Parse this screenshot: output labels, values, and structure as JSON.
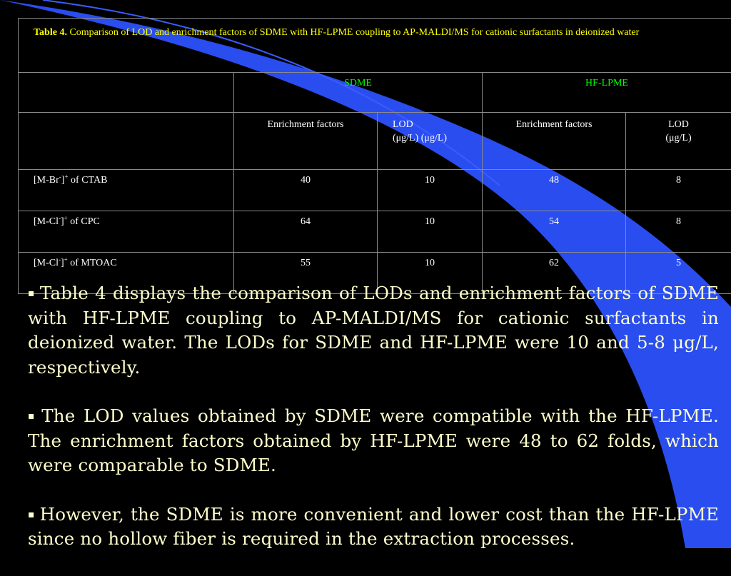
{
  "table": {
    "caption_label": "Table 4.",
    "caption_text": "Comparison of LOD and enrichment factors of SDME with HF-LPME coupling to AP-MALDI/MS for cationic surfactants in deionized water",
    "group_headers": [
      "SDME",
      "HF-LPME"
    ],
    "column_headers": {
      "sdme_enrichment": "Enrichment factors",
      "sdme_lod_line1": "LOD",
      "sdme_lod_line2": "(μg/L) (μg/L)",
      "hf_enrichment": "Enrichment factors",
      "hf_lod_line1": "LOD",
      "hf_lod_line2": "(μg/L)"
    },
    "rows": [
      {
        "pre": "[M-Br",
        "sup1": "-",
        "mid": "]",
        "sup2": "+",
        "post": " of CTAB",
        "sdme_ef": "40",
        "sdme_lod": "10",
        "hf_ef": "48",
        "hf_lod": "8"
      },
      {
        "pre": "[M-Cl",
        "sup1": "-",
        "mid": "]",
        "sup2": "+",
        "post": " of CPC",
        "sdme_ef": "64",
        "sdme_lod": "10",
        "hf_ef": "54",
        "hf_lod": "8"
      },
      {
        "pre": "[M-Cl",
        "sup1": "-",
        "mid": "]",
        "sup2": "+",
        "post": " of MTOAC",
        "sdme_ef": "55",
        "sdme_lod": "10",
        "hf_ef": "62",
        "hf_lod": "5"
      }
    ]
  },
  "bullets": [
    "Table 4 displays the comparison of LODs and enrichment factors of SDME with HF-LPME coupling to AP-MALDI/MS for cationic surfactants in deionized water. The LODs for SDME and HF-LPME were 10 and 5-8 μg/L, respectively.",
    "The LOD values obtained by SDME were compatible with the HF-LPME. The enrichment factors obtained by HF-LPME were 48 to 62 folds, which were comparable to SDME.",
    "However, the SDME is more convenient and lower cost than the HF-LPME since no hollow fiber is required in the extraction processes."
  ],
  "bullet_glyph": "▪",
  "colors": {
    "background": "#000000",
    "caption": "#ffff00",
    "group_header": "#00ff00",
    "table_text": "#ffffff",
    "body_text": "#ffffcc",
    "decoration": "#2a4df0"
  }
}
